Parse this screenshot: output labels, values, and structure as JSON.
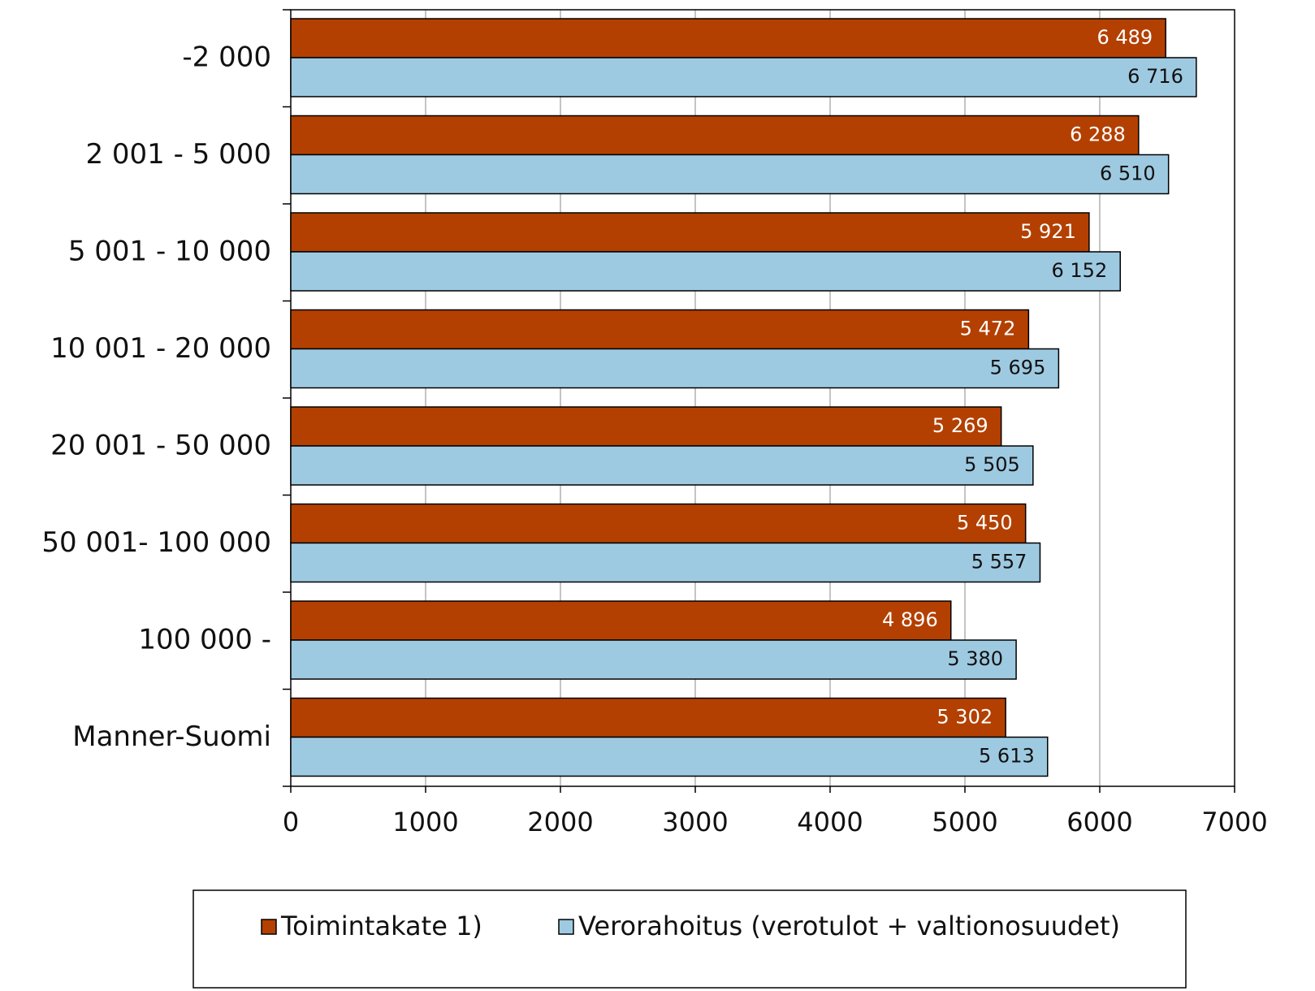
{
  "chart_data": {
    "type": "hbar",
    "categories": [
      "-2 000",
      "2 001 - 5 000",
      "5 001 - 10 000",
      "10 001 - 20 000",
      "20 001 - 50 000",
      "50 001- 100 000",
      "100 000 -",
      "Manner-Suomi"
    ],
    "series": [
      {
        "name": "Toimintakate 1)",
        "color": "#b34000",
        "values": [
          6489,
          6288,
          5921,
          5472,
          5269,
          5450,
          4896,
          5302
        ],
        "value_labels": [
          "6 489",
          "6 288",
          "5 921",
          "5 472",
          "5 269",
          "5 450",
          "4 896",
          "5 302"
        ]
      },
      {
        "name": "Verorahoitus (verotulot + valtionosuudet)",
        "color": "#9ecae1",
        "values": [
          6716,
          6510,
          6152,
          5695,
          5505,
          5557,
          5380,
          5613
        ],
        "value_labels": [
          "6 716",
          "6 510",
          "6 152",
          "5 695",
          "5 505",
          "5 557",
          "5 380",
          "5 613"
        ]
      }
    ],
    "xlim": [
      0,
      7000
    ],
    "xticks": [
      0,
      1000,
      2000,
      3000,
      4000,
      5000,
      6000,
      7000
    ],
    "grid": true,
    "legend": "bottom"
  }
}
